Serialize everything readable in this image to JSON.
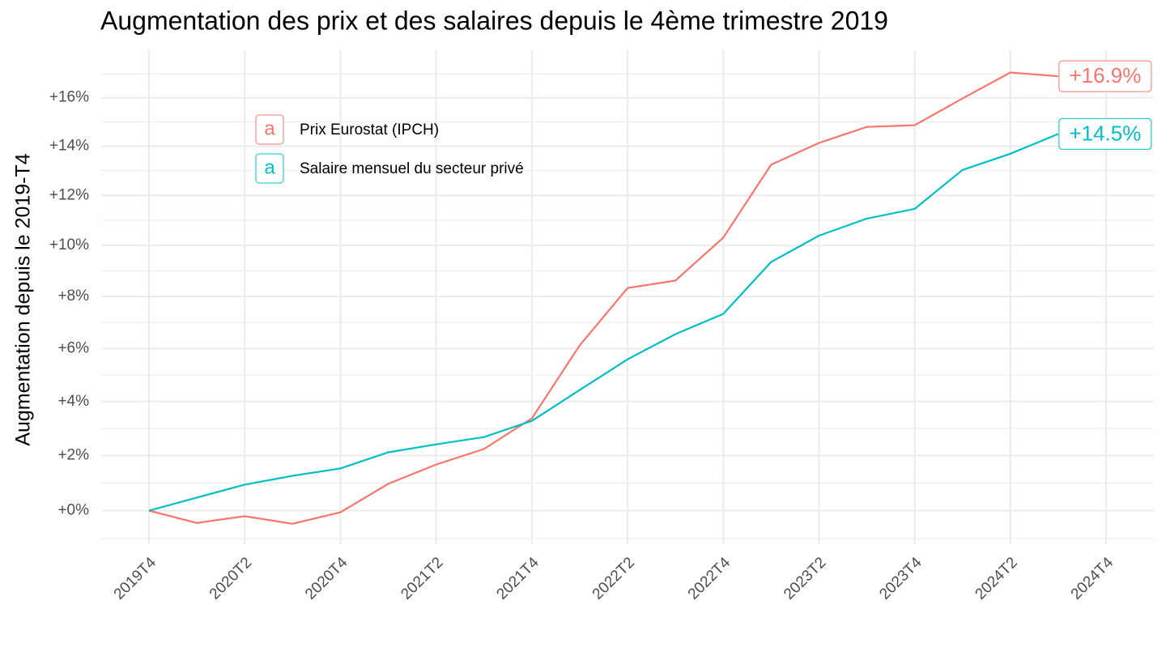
{
  "chart_data": {
    "type": "line",
    "title": "Augmentation des prix et des salaires depuis le 4ème trimestre 2019",
    "ylabel": "Augmentation depuis le 2019-T4",
    "categories": [
      "2019T4",
      null,
      "2020T2",
      null,
      "2020T4",
      null,
      "2021T2",
      null,
      "2021T4",
      null,
      "2022T2",
      null,
      "2022T4",
      null,
      "2023T2",
      null,
      "2023T4",
      null,
      "2024T2",
      null,
      "2024T4"
    ],
    "series": [
      {
        "name": "Prix Eurostat (IPCH)",
        "color": "#f8766d",
        "values": [
          100,
          99.56,
          99.8,
          99.53,
          99.94,
          100.97,
          101.67,
          102.24,
          103.37,
          106.12,
          108.33,
          108.62,
          110.31,
          113.24,
          114.13,
          114.79,
          114.86,
          115.97,
          117.06,
          116.9,
          null
        ],
        "value_labels": [
          null,
          null,
          null,
          null,
          null,
          null,
          null,
          null,
          null,
          null,
          null,
          null,
          null,
          null,
          null,
          null,
          null,
          null,
          null,
          "+16.9%",
          null
        ]
      },
      {
        "name": "Salaire mensuel du secteur privé",
        "color": "#00bfc4",
        "values": [
          100,
          100.47,
          100.94,
          101.26,
          101.53,
          102.12,
          102.41,
          102.68,
          103.28,
          104.43,
          105.59,
          106.55,
          107.33,
          109.35,
          110.39,
          111.07,
          111.46,
          113.03,
          113.69,
          114.5,
          null
        ],
        "value_labels": [
          null,
          null,
          null,
          null,
          null,
          null,
          null,
          null,
          null,
          null,
          null,
          null,
          null,
          null,
          null,
          null,
          null,
          null,
          null,
          "+14.5%",
          null
        ]
      }
    ],
    "ylog": true,
    "ylim": [
      98.8,
      118
    ],
    "yticks": [
      {
        "value": 100,
        "label": "+0%"
      },
      {
        "value": 102,
        "label": "+2%"
      },
      {
        "value": 104,
        "label": "+4%"
      },
      {
        "value": 106,
        "label": "+6%"
      },
      {
        "value": 108,
        "label": "+8%"
      },
      {
        "value": 110,
        "label": "+10%"
      },
      {
        "value": 112,
        "label": "+12%"
      },
      {
        "value": 114,
        "label": "+14%"
      },
      {
        "value": 116,
        "label": "+16%"
      }
    ],
    "yminor_ticks": [
      99,
      101,
      103,
      105,
      107,
      109,
      111,
      113,
      115,
      117
    ],
    "grid": true,
    "legend": "top-left"
  }
}
